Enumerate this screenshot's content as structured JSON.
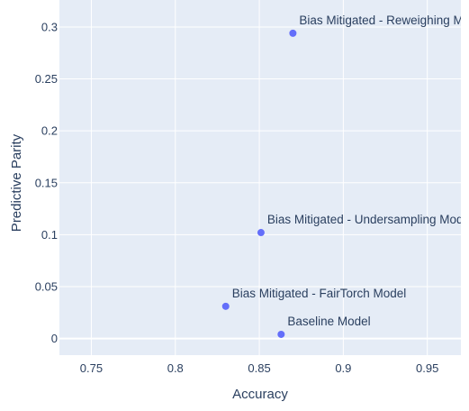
{
  "chart_data": {
    "type": "scatter",
    "title": "",
    "xlabel": "Accuracy",
    "ylabel": "Predictive Parity",
    "xlim": [
      0.731,
      0.97
    ],
    "ylim": [
      -0.016,
      0.326
    ],
    "x_ticks": [
      0.75,
      0.8,
      0.85,
      0.9,
      0.95
    ],
    "x_tick_labels": [
      "0.75",
      "0.8",
      "0.85",
      "0.9",
      "0.95"
    ],
    "y_ticks": [
      0,
      0.05,
      0.1,
      0.15,
      0.2,
      0.25,
      0.3
    ],
    "y_tick_labels": [
      "0",
      "0.05",
      "0.1",
      "0.15",
      "0.2",
      "0.25",
      "0.3"
    ],
    "grid": true,
    "background_color": "#e5ecf6",
    "grid_color": "#ffffff",
    "marker_color": "#636efa",
    "points": [
      {
        "label": "Bias Mitigated - Reweighing Model",
        "x": 0.87,
        "y": 0.294
      },
      {
        "label": "Bias Mitigated - Undersampling Model",
        "x": 0.851,
        "y": 0.102
      },
      {
        "label": "Bias Mitigated - FairTorch Model",
        "x": 0.83,
        "y": 0.031
      },
      {
        "label": "Baseline Model",
        "x": 0.863,
        "y": 0.004
      }
    ]
  }
}
